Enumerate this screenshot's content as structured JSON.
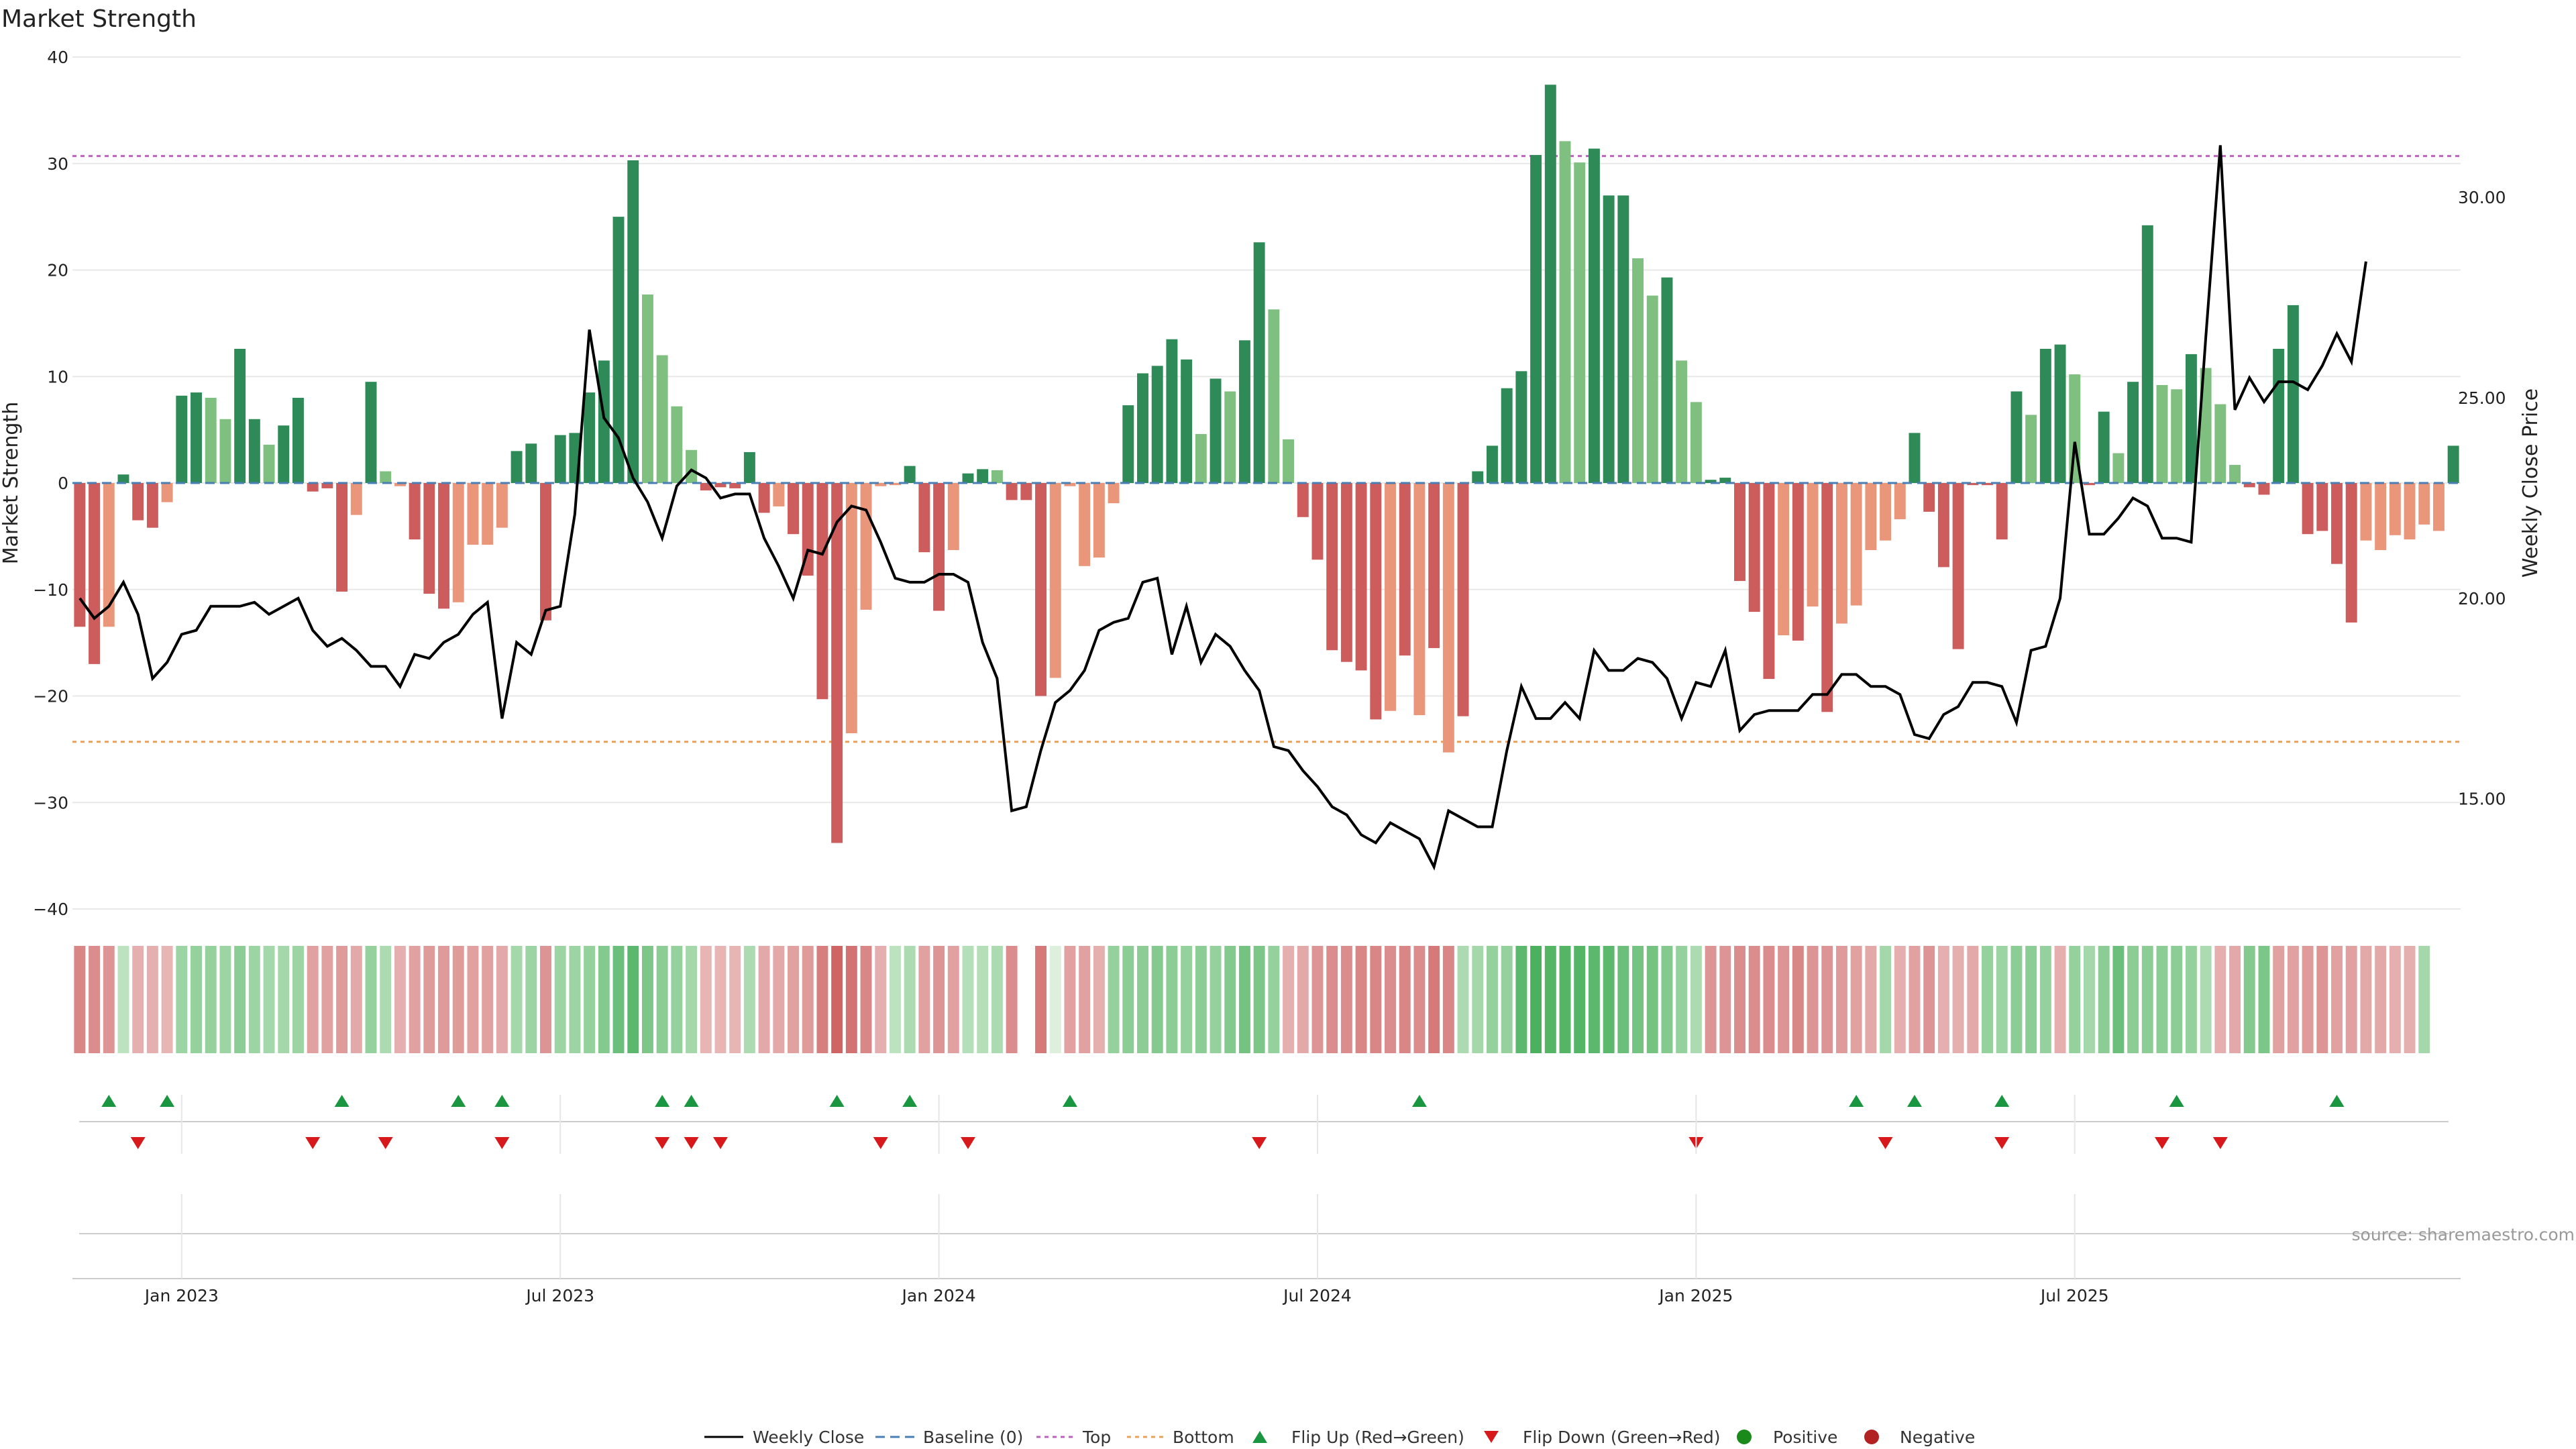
{
  "title": "Market Strength",
  "source": "source: sharemaestro.com",
  "colors": {
    "strong_green": "#2e8b57",
    "light_green": "#7fbf7f",
    "strong_red": "#cd5c5c",
    "light_red": "#e9967a",
    "price_line": "#000000",
    "top_line": "#c05fc0",
    "bottom_line": "#e8a05a",
    "baseline": "#4a7fb5",
    "flip_up": "#1a9641",
    "flip_down": "#d7191c",
    "positive_dot": "#1a8a1a",
    "negative_dot": "#b22222"
  },
  "chart_data": {
    "type": "bar",
    "title": "Market Strength",
    "ylabel": "Market Strength",
    "ylabel_right": "Weekly Close Price",
    "ylim": [
      -40,
      40
    ],
    "ylim_right": [
      12.25,
      33.5
    ],
    "yticks": [
      "40",
      "30",
      "20",
      "10",
      "0",
      "−10",
      "−20",
      "−30",
      "−40"
    ],
    "yticks_right": [
      "30.00",
      "25.00",
      "20.00",
      "15.00"
    ],
    "xticks": [
      "Jan 2023",
      "Jul 2023",
      "Jan 2024",
      "Jul 2024",
      "Jan 2025",
      "Jul 2025"
    ],
    "xtick_weeks": [
      7,
      33,
      59,
      85,
      111,
      137
    ],
    "top_level": 30.7,
    "bottom_level": -24.3,
    "grid": true,
    "legend_position": "bottom-center",
    "legend": [
      "Weekly Close",
      "Baseline (0)",
      "Top",
      "Bottom",
      "Flip Up (Red→Green)",
      "Flip Down (Green→Red)",
      "Positive",
      "Negative"
    ],
    "strength": [
      -13.5,
      -17,
      -13.5,
      0.8,
      -3.5,
      -4.2,
      -1.8,
      8.2,
      8.5,
      8,
      6,
      12.6,
      6,
      3.6,
      5.4,
      8,
      -0.8,
      -0.5,
      -10.2,
      -3,
      9.5,
      1.1,
      -0.3,
      -5.3,
      -10.4,
      -11.8,
      -11.2,
      -5.8,
      -5.8,
      -4.2,
      3,
      3.7,
      -12.9,
      4.5,
      4.7,
      8.5,
      11.5,
      25,
      30.3,
      17.7,
      12,
      7.2,
      3.1,
      -0.7,
      -0.4,
      -0.5,
      2.9,
      -2.8,
      -2.2,
      -4.8,
      -8.7,
      -20.3,
      -33.8,
      -23.5,
      -11.9,
      -0.3,
      -0.2,
      1.6,
      -6.5,
      -12,
      -6.3,
      0.9,
      1.3,
      1.2,
      -1.6,
      -1.6,
      -20,
      -18.3,
      -0.3,
      -7.8,
      -7,
      -1.9,
      7.3,
      10.3,
      11,
      13.5,
      11.6,
      4.6,
      9.8,
      8.6,
      13.4,
      22.6,
      16.3,
      4.1,
      -3.2,
      -7.2,
      -15.7,
      -16.8,
      -17.6,
      -22.2,
      -21.4,
      -16.2,
      -21.8,
      -15.5,
      -25.3,
      -21.9,
      1.1,
      3.5,
      8.9,
      10.5,
      30.8,
      37.4,
      32.1,
      30.1,
      31.4,
      27,
      27,
      21.1,
      17.6,
      19.3,
      11.5,
      7.6,
      0.3,
      0.5,
      -9.2,
      -12.1,
      -18.4,
      -14.3,
      -14.8,
      -11.6,
      -21.5,
      -13.2,
      -11.5,
      -6.3,
      -5.4,
      -3.4,
      4.7,
      -2.7,
      -7.9,
      -15.6,
      -0.2,
      -0.2,
      -5.3,
      8.6,
      6.4,
      12.6,
      13,
      10.2,
      -0.2,
      6.7,
      2.8,
      9.5,
      24.2,
      9.2,
      8.8,
      12.1,
      10.8,
      7.4,
      1.7,
      -0.4,
      -1.1,
      12.6,
      16.7,
      -4.8,
      -4.5,
      -7.6,
      -13.1,
      -5.4,
      -6.3,
      -4.9,
      -5.3,
      -3.9,
      -4.5,
      3.5
    ],
    "tones": [
      "R",
      "R",
      "L",
      "G",
      "R",
      "R",
      "L",
      "G",
      "G",
      "L",
      "L",
      "G",
      "G",
      "L",
      "G",
      "G",
      "R",
      "R",
      "R",
      "L",
      "G",
      "L",
      "L",
      "R",
      "R",
      "R",
      "L",
      "L",
      "L",
      "L",
      "G",
      "G",
      "R",
      "G",
      "G",
      "G",
      "G",
      "G",
      "G",
      "L",
      "L",
      "L",
      "L",
      "R",
      "R",
      "R",
      "G",
      "R",
      "L",
      "R",
      "R",
      "R",
      "R",
      "L",
      "L",
      "L",
      "L",
      "G",
      "R",
      "R",
      "L",
      "G",
      "G",
      "L",
      "R",
      "R",
      "R",
      "L",
      "L",
      "L",
      "L",
      "L",
      "G",
      "G",
      "G",
      "G",
      "G",
      "L",
      "G",
      "L",
      "G",
      "G",
      "L",
      "L",
      "R",
      "R",
      "R",
      "R",
      "R",
      "R",
      "L",
      "R",
      "L",
      "R",
      "L",
      "R",
      "G",
      "G",
      "G",
      "G",
      "G",
      "G",
      "L",
      "L",
      "G",
      "G",
      "G",
      "L",
      "L",
      "G",
      "L",
      "L",
      "G",
      "G",
      "R",
      "R",
      "R",
      "L",
      "R",
      "L",
      "R",
      "L",
      "L",
      "L",
      "L",
      "L",
      "G",
      "R",
      "R",
      "R",
      "R",
      "R",
      "R",
      "G",
      "L",
      "G",
      "G",
      "L",
      "R",
      "G",
      "L",
      "G",
      "G",
      "L",
      "L",
      "G",
      "L",
      "L",
      "L",
      "R",
      "R",
      "G",
      "G",
      "R",
      "R",
      "R",
      "R",
      "L",
      "L",
      "L",
      "L",
      "L",
      "L",
      "G"
    ],
    "heat": [
      -0.6,
      -0.55,
      -0.5,
      0.2,
      -0.3,
      -0.3,
      -0.25,
      0.4,
      0.45,
      0.45,
      0.4,
      0.5,
      0.4,
      0.35,
      0.35,
      0.4,
      -0.4,
      -0.4,
      -0.45,
      -0.35,
      0.45,
      0.3,
      -0.3,
      -0.4,
      -0.45,
      -0.45,
      -0.45,
      -0.4,
      -0.4,
      -0.35,
      0.35,
      0.4,
      -0.5,
      0.4,
      0.4,
      0.45,
      0.55,
      0.7,
      0.8,
      0.6,
      0.5,
      0.45,
      0.35,
      -0.25,
      -0.25,
      -0.25,
      0.3,
      -0.35,
      -0.35,
      -0.4,
      -0.45,
      -0.65,
      -0.85,
      -0.75,
      -0.6,
      -0.3,
      0.2,
      0.3,
      -0.4,
      -0.5,
      -0.4,
      0.25,
      0.25,
      0.3,
      -0.55,
      -0.65,
      -0.7,
      0,
      -0.4,
      -0.4,
      -0.3,
      0.45,
      0.5,
      0.5,
      0.55,
      0.5,
      0.45,
      0.5,
      0.45,
      0.55,
      0.65,
      0.6,
      0.45,
      -0.3,
      -0.35,
      -0.5,
      -0.55,
      -0.55,
      -0.6,
      -0.6,
      -0.55,
      -0.6,
      -0.55,
      -0.7,
      -0.6,
      0.3,
      0.35,
      0.45,
      0.45,
      0.8,
      0.9,
      0.85,
      0.85,
      0.85,
      0.8,
      0.8,
      0.7,
      0.65,
      0.65,
      0.55,
      0.45,
      0.3,
      -0.5,
      -0.5,
      -0.55,
      -0.55,
      -0.55,
      -0.5,
      -0.6,
      -0.5,
      -0.5,
      -0.45,
      -0.4,
      -0.35,
      0.35,
      -0.3,
      -0.4,
      -0.5,
      -0.3,
      -0.3,
      -0.35,
      0.45,
      0.4,
      0.5,
      0.5,
      0.45,
      -0.3,
      0.45,
      0.35,
      0.5,
      0.7,
      0.5,
      0.5,
      0.5,
      0.5,
      0.45,
      0.3,
      -0.3,
      -0.35,
      0.55,
      0.6,
      -0.4,
      -0.4,
      -0.45,
      -0.5,
      -0.4,
      -0.4,
      -0.35,
      -0.35,
      -0.3,
      -0.3,
      0.35
    ],
    "gap_week": 65,
    "price": [
      20,
      19.5,
      19.8,
      20.4,
      19.6,
      18,
      18.4,
      19.1,
      19.2,
      19.8,
      19.8,
      19.8,
      19.9,
      19.6,
      19.8,
      20,
      19.2,
      18.8,
      19,
      18.7,
      18.3,
      18.3,
      17.8,
      18.6,
      18.5,
      18.9,
      19.1,
      19.6,
      19.9,
      17,
      18.9,
      18.6,
      19.7,
      19.8,
      22.1,
      26.7,
      24.5,
      24,
      23,
      22.4,
      21.5,
      22.8,
      23.2,
      23,
      22.5,
      22.6,
      22.6,
      21.5,
      20.8,
      20,
      21.2,
      21.1,
      21.9,
      22.3,
      22.2,
      21.4,
      20.5,
      20.4,
      20.4,
      20.6,
      20.6,
      20.4,
      18.9,
      18,
      14.7,
      14.8,
      16.2,
      17.4,
      17.7,
      18.2,
      19.2,
      19.4,
      19.5,
      20.4,
      20.5,
      18.6,
      19.8,
      18.4,
      19.1,
      18.8,
      18.2,
      17.7,
      16.3,
      16.2,
      15.7,
      15.3,
      14.8,
      14.6,
      14.1,
      13.9,
      14.4,
      14.2,
      14,
      13.3,
      14.7,
      14.5,
      14.3,
      14.3,
      16.2,
      17.8,
      17,
      17,
      17.4,
      17,
      18.7,
      18.2,
      18.2,
      18.5,
      18.4,
      18,
      17,
      17.9,
      17.8,
      18.7,
      16.7,
      17.1,
      17.2,
      17.2,
      17.2,
      17.6,
      17.6,
      18.1,
      18.1,
      17.8,
      17.8,
      17.6,
      16.6,
      16.5,
      17.1,
      17.3,
      17.9,
      17.9,
      17.8,
      16.9,
      18.7,
      18.8,
      20,
      23.9,
      21.6,
      21.6,
      22,
      22.5,
      22.3,
      21.5,
      21.5,
      21.4,
      26.5,
      31.3,
      24.7,
      25.5,
      24.9,
      25.4,
      25.4,
      25.2,
      25.8,
      26.6,
      25.9,
      28.4
    ],
    "flip_up": [
      2,
      6,
      18,
      26,
      29,
      40,
      42,
      52,
      57,
      68,
      92,
      122,
      126,
      132,
      144,
      155
    ],
    "flip_down": [
      4,
      16,
      21,
      29,
      40,
      42,
      44,
      55,
      61,
      81,
      111,
      124,
      132,
      143,
      147
    ]
  }
}
